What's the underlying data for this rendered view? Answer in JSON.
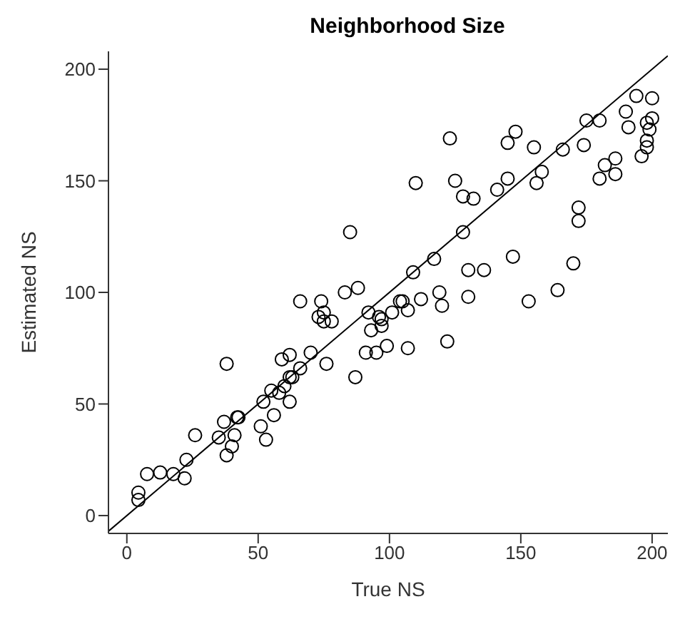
{
  "chart_data": {
    "type": "scatter",
    "title": "Neighborhood Size",
    "xlabel": "True NS",
    "ylabel": "Estimated NS",
    "xlim": [
      -7,
      206
    ],
    "ylim": [
      -8,
      208
    ],
    "xticks": [
      0,
      50,
      100,
      150,
      200
    ],
    "yticks": [
      0,
      50,
      100,
      150,
      200
    ],
    "grid": false,
    "legend": false,
    "marker": "circle",
    "series": [
      {
        "color": "#000000",
        "x": [
          4.4,
          4.4,
          7.7,
          12.7,
          17.7,
          22,
          22.7,
          26,
          38,
          35,
          37,
          38,
          40,
          41,
          42,
          42.5,
          51,
          53,
          52,
          56,
          55,
          58,
          60,
          62,
          62,
          63,
          66,
          59,
          62,
          70,
          76,
          87,
          91,
          95,
          99,
          85,
          66,
          74,
          83,
          88,
          73,
          75,
          75,
          78,
          92,
          93,
          96,
          97,
          101,
          123,
          110,
          125,
          128,
          132,
          141,
          145,
          145,
          148,
          155,
          158,
          156,
          166,
          174,
          175,
          180,
          190,
          194,
          200,
          198,
          200,
          199,
          191,
          198,
          198,
          196,
          182,
          186,
          186,
          180,
          172,
          172,
          128,
          147,
          117,
          109,
          130,
          136,
          170,
          119,
          130,
          112,
          104,
          105,
          107,
          120,
          153,
          164,
          97,
          107,
          122
        ],
        "values": [
          10.3,
          7,
          18.6,
          19.3,
          18.6,
          16.7,
          25,
          36,
          68,
          35,
          42,
          27,
          31,
          36,
          44,
          44,
          40,
          34,
          51,
          45,
          56,
          55,
          58,
          51,
          62,
          62,
          66,
          70,
          72,
          73,
          68,
          62,
          73,
          73,
          76,
          127,
          96,
          96,
          100,
          102,
          89,
          91,
          87,
          87,
          91,
          83,
          89,
          85,
          91,
          169,
          149,
          150,
          143,
          142,
          146,
          151,
          167,
          172,
          165,
          154,
          149,
          164,
          166,
          177,
          177,
          181,
          188,
          187,
          176,
          178,
          173,
          174,
          168,
          165,
          161,
          157,
          160,
          153,
          151,
          138,
          132,
          127,
          116,
          115,
          109,
          110,
          110,
          113,
          100,
          98,
          97,
          96,
          96,
          92,
          94,
          96,
          101,
          88,
          75,
          78
        ]
      },
      {
        "type": "line",
        "marker": "none",
        "color": "#000000",
        "x": [
          -7,
          206
        ],
        "values": [
          -7,
          206
        ]
      }
    ]
  }
}
